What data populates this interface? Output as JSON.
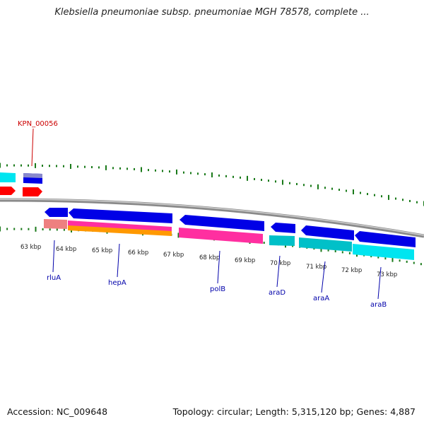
{
  "title": "Klebsiella pneumoniae subsp. pneumoniae MGH 78578, complete ...",
  "footer": {
    "accession": "Accession: NC_009648",
    "summary": "Topology: circular; Length: 5,315,120 bp; Genes: 4,887"
  },
  "highlight_label": "KPN_00056",
  "ticks": [
    "63 kbp",
    "64 kbp",
    "65 kbp",
    "66 kbp",
    "67 kbp",
    "68 kbp",
    "69 kbp",
    "70 kbp",
    "71 kbp",
    "72 kbp",
    "73 kbp"
  ],
  "gene_labels": [
    "rluA",
    "hepA",
    "polB",
    "araD",
    "araA",
    "araB"
  ],
  "colors": {
    "cds": "#0000e6",
    "highlight": "#ff0000",
    "gene_label": "#0000aa",
    "highlight_label": "#cc0000",
    "tick": "#1a7a1a",
    "backbone": "#888888",
    "pink": "#ff2fa0",
    "orange": "#ff9900",
    "salmon": "#ee7777",
    "cyan": "#00e5f0",
    "teal": "#00c0c8"
  }
}
